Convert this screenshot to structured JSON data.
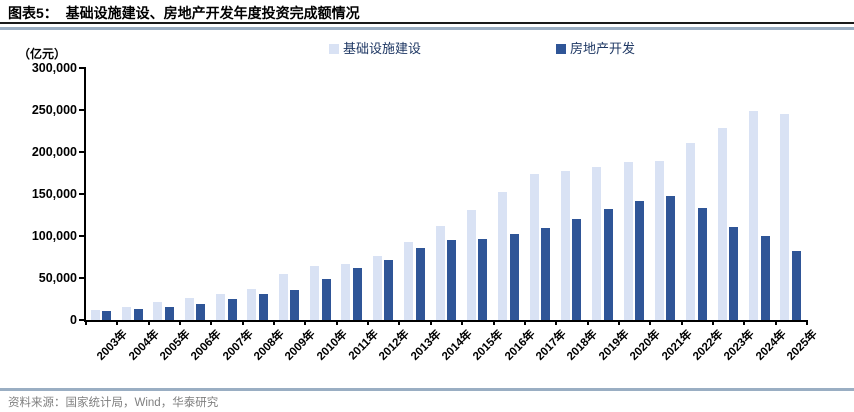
{
  "figure": {
    "title": "图表5：  基础设施建设、房地产开发年度投资完成额情况",
    "source": "资料来源：国家统计局，Wind，华泰研究"
  },
  "chart_data": {
    "type": "bar",
    "title": "基础设施建设、房地产开发年度投资完成额情况",
    "unit_label": "（亿元）",
    "xlabel": "",
    "ylabel": "亿元",
    "ylim": [
      0,
      300000
    ],
    "ytick_step": 50000,
    "yticks_labels": [
      "0",
      "50,000",
      "100,000",
      "150,000",
      "200,000",
      "250,000",
      "300,000"
    ],
    "grid": false,
    "legend_position": "top",
    "categories": [
      "2003年",
      "2004年",
      "2005年",
      "2006年",
      "2007年",
      "2008年",
      "2009年",
      "2010年",
      "2011年",
      "2012年",
      "2013年",
      "2014年",
      "2015年",
      "2016年",
      "2017年",
      "2018年",
      "2019年",
      "2020年",
      "2021年",
      "2022年",
      "2023年",
      "2024年",
      "2025年"
    ],
    "series": [
      {
        "id": "infrastructure",
        "name": "基础设施建设",
        "color": "#D9E2F4",
        "values": [
          12500,
          16000,
          21000,
          26000,
          30500,
          37500,
          54500,
          64000,
          66500,
          76000,
          93000,
          111500,
          131000,
          152000,
          173500,
          177000,
          182000,
          188000,
          189000,
          211000,
          229000,
          249000,
          245000
        ]
      },
      {
        "id": "real-estate",
        "name": "房地产开发",
        "color": "#2F5597",
        "values": [
          10200,
          13200,
          15900,
          19400,
          25300,
          31200,
          36200,
          48300,
          61800,
          71800,
          86000,
          95000,
          96000,
          102600,
          109800,
          120300,
          132200,
          141400,
          147600,
          132900,
          110900,
          100300,
          82000
        ]
      }
    ]
  },
  "colors": {
    "bar_light": "#D9E2F4",
    "bar_dark": "#2F5597",
    "rule_black": "#1A1A1A",
    "rule_blue": "#9AAEC3",
    "legend_text": "#1F3864",
    "axis_text": "#000000",
    "source_text": "#7F7F7F"
  }
}
